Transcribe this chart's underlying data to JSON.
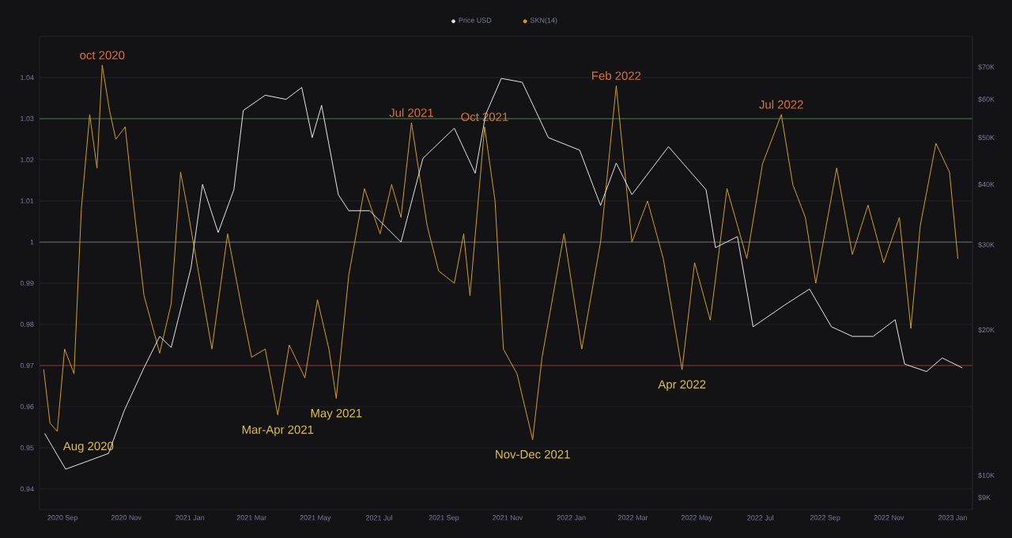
{
  "chart_data": {
    "type": "line",
    "xlim": [
      "2020-08-10",
      "2023-01-20"
    ],
    "xticks": [
      {
        "value": "2020-09-01",
        "label": "2020 Sep"
      },
      {
        "value": "2020-11-01",
        "label": "2020 Nov"
      },
      {
        "value": "2021-01-01",
        "label": "2021 Jan"
      },
      {
        "value": "2021-03-01",
        "label": "2021 Mar"
      },
      {
        "value": "2021-05-01",
        "label": "2021 May"
      },
      {
        "value": "2021-07-01",
        "label": "2021 Jul"
      },
      {
        "value": "2021-09-01",
        "label": "2021 Sep"
      },
      {
        "value": "2021-11-01",
        "label": "2021 Nov"
      },
      {
        "value": "2022-01-01",
        "label": "2022 Jan"
      },
      {
        "value": "2022-03-01",
        "label": "2022 Mar"
      },
      {
        "value": "2022-05-01",
        "label": "2022 May"
      },
      {
        "value": "2022-07-01",
        "label": "2022 Jul"
      },
      {
        "value": "2022-09-01",
        "label": "2022 Sep"
      },
      {
        "value": "2022-11-01",
        "label": "2022 Nov"
      },
      {
        "value": "2023-01-01",
        "label": "2023 Jan"
      }
    ],
    "ylim": [
      0.935,
      1.05
    ],
    "yticks": [
      0.94,
      0.95,
      0.96,
      0.97,
      0.98,
      0.99,
      1,
      1.01,
      1.02,
      1.03,
      1.04
    ],
    "y2lim": [
      8500,
      81000
    ],
    "y2ticks": [
      {
        "value": 9000,
        "label": "$9K"
      },
      {
        "value": 10000,
        "label": "$10K"
      },
      {
        "value": 20000,
        "label": "$20K"
      },
      {
        "value": 30000,
        "label": "$30K"
      },
      {
        "value": 40000,
        "label": "$40K"
      },
      {
        "value": 50000,
        "label": "$50K"
      },
      {
        "value": 60000,
        "label": "$60K"
      },
      {
        "value": 70000,
        "label": "$70K"
      }
    ],
    "log": "y2",
    "grid": "y",
    "legend": "top",
    "series": [
      {
        "name": "Price USD",
        "color": "#e6e6e6",
        "axis": "y2",
        "x": [
          "2020-08-15",
          "2020-09-04",
          "2020-10-15",
          "2020-10-30",
          "2020-11-18",
          "2020-12-03",
          "2020-12-14",
          "2021-01-02",
          "2021-01-13",
          "2021-01-28",
          "2021-02-12",
          "2021-02-21",
          "2021-03-14",
          "2021-04-03",
          "2021-04-18",
          "2021-04-28",
          "2021-05-07",
          "2021-05-23",
          "2021-06-02",
          "2021-06-22",
          "2021-07-22",
          "2021-08-12",
          "2021-09-11",
          "2021-10-01",
          "2021-10-11",
          "2021-10-26",
          "2021-11-15",
          "2021-12-10",
          "2022-01-09",
          "2022-01-29",
          "2022-02-13",
          "2022-02-28",
          "2022-04-04",
          "2022-05-10",
          "2022-05-19",
          "2022-06-09",
          "2022-06-24",
          "2022-07-24",
          "2022-08-17",
          "2022-09-07",
          "2022-09-27",
          "2022-10-17",
          "2022-11-07",
          "2022-11-16",
          "2022-12-07",
          "2022-12-22",
          "2023-01-10"
        ],
        "values": [
          12200,
          10300,
          11100,
          13600,
          16700,
          19400,
          18400,
          26900,
          40000,
          31800,
          39000,
          56900,
          61200,
          60000,
          63500,
          50000,
          58300,
          38100,
          35300,
          35300,
          30400,
          45300,
          52300,
          42200,
          55800,
          66300,
          65100,
          50000,
          47100,
          36200,
          44300,
          38100,
          47900,
          39000,
          29600,
          31200,
          20300,
          22500,
          24300,
          20300,
          19400,
          19400,
          21000,
          17000,
          16400,
          17500,
          16700
        ]
      },
      {
        "name": "SKN(14)",
        "color": "#d4a01c",
        "x": [
          "2020-08-14",
          "2020-08-20",
          "2020-08-27",
          "2020-09-03",
          "2020-09-12",
          "2020-09-19",
          "2020-09-27",
          "2020-10-04",
          "2020-10-09",
          "2020-10-16",
          "2020-10-22",
          "2020-10-31",
          "2020-11-08",
          "2020-11-18",
          "2020-12-03",
          "2020-12-14",
          "2020-12-23",
          "2020-12-29",
          "2021-01-13",
          "2021-01-22",
          "2021-02-06",
          "2021-02-21",
          "2021-03-01",
          "2021-03-14",
          "2021-03-26",
          "2021-04-06",
          "2021-04-21",
          "2021-05-03",
          "2021-05-14",
          "2021-05-21",
          "2021-06-02",
          "2021-06-17",
          "2021-07-02",
          "2021-07-13",
          "2021-07-22",
          "2021-08-01",
          "2021-08-16",
          "2021-08-27",
          "2021-09-11",
          "2021-09-20",
          "2021-09-26",
          "2021-10-10",
          "2021-10-20",
          "2021-10-28",
          "2021-11-10",
          "2021-11-25",
          "2021-12-04",
          "2021-12-25",
          "2022-01-11",
          "2022-01-29",
          "2022-02-13",
          "2022-02-28",
          "2022-03-15",
          "2022-03-30",
          "2022-04-17",
          "2022-04-29",
          "2022-05-14",
          "2022-05-30",
          "2022-06-18",
          "2022-07-03",
          "2022-07-21",
          "2022-08-01",
          "2022-08-13",
          "2022-08-23",
          "2022-09-12",
          "2022-09-27",
          "2022-10-12",
          "2022-10-27",
          "2022-11-11",
          "2022-11-22",
          "2022-12-01",
          "2022-12-16",
          "2022-12-29",
          "2023-01-06"
        ],
        "values": [
          0.969,
          0.956,
          0.954,
          0.974,
          0.968,
          1.008,
          1.031,
          1.018,
          1.043,
          1.032,
          1.025,
          1.028,
          1.009,
          0.987,
          0.973,
          0.985,
          1.017,
          1.009,
          0.987,
          0.974,
          1.002,
          0.982,
          0.972,
          0.974,
          0.958,
          0.975,
          0.967,
          0.986,
          0.974,
          0.962,
          0.992,
          1.013,
          1.002,
          1.014,
          1.006,
          1.029,
          1.004,
          0.993,
          0.99,
          1.002,
          0.987,
          1.028,
          1.01,
          0.974,
          0.968,
          0.952,
          0.972,
          1.002,
          0.974,
          1.0,
          1.038,
          1.0,
          1.01,
          0.996,
          0.969,
          0.995,
          0.981,
          1.013,
          0.996,
          1.019,
          1.031,
          1.014,
          1.006,
          0.99,
          1.018,
          0.997,
          1.009,
          0.995,
          1.006,
          0.979,
          1.004,
          1.024,
          1.017,
          0.996
        ]
      }
    ],
    "ref_lines": [
      {
        "axis": "y",
        "value": 1.03,
        "color": "#3f7f3a"
      },
      {
        "axis": "y",
        "value": 1,
        "color": "#6e6e6e"
      },
      {
        "axis": "y",
        "value": 0.97,
        "color": "#8a3030"
      }
    ],
    "annotations": [
      {
        "text": "oct 2020",
        "x": "2020-10-09",
        "y": 1.043
      },
      {
        "text": "Aug 2020",
        "x": "2020-08-27",
        "y": 0.954
      },
      {
        "text": "Mar-Apr 2021",
        "x": "2021-03-26",
        "y": 0.958
      },
      {
        "text": "May 2021",
        "x": "2021-05-21",
        "y": 0.962
      },
      {
        "text": "Jul 2021",
        "x": "2021-08-01",
        "y": 1.029
      },
      {
        "text": "Oct 2021",
        "x": "2021-10-10",
        "y": 1.028
      },
      {
        "text": "Nov-Dec 2021",
        "x": "2021-11-25",
        "y": 0.952
      },
      {
        "text": "Feb 2022",
        "x": "2022-02-13",
        "y": 1.038
      },
      {
        "text": "Apr 2022",
        "x": "2022-04-17",
        "y": 0.969
      },
      {
        "text": "Jul 2022",
        "x": "2022-07-21",
        "y": 1.031
      }
    ]
  }
}
